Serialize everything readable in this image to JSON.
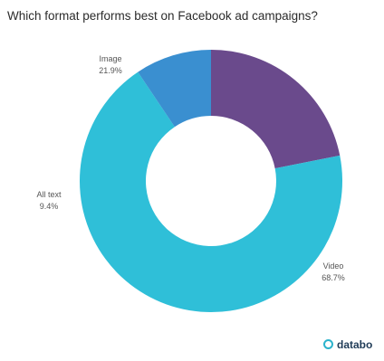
{
  "chart_data": {
    "type": "pie",
    "title": "Which format performs best on Facebook ad campaigns?",
    "donut": true,
    "slices": [
      {
        "label": "Image",
        "value": 21.9,
        "value_label": "21.9%",
        "color": "#6a4a8c"
      },
      {
        "label": "Video",
        "value": 68.7,
        "value_label": "68.7%",
        "color": "#2fbfd8"
      },
      {
        "label": "All text",
        "value": 9.4,
        "value_label": "9.4%",
        "color": "#3a8fd0"
      }
    ]
  },
  "branding": {
    "text": "databo",
    "icon": "databox-logo-icon"
  }
}
